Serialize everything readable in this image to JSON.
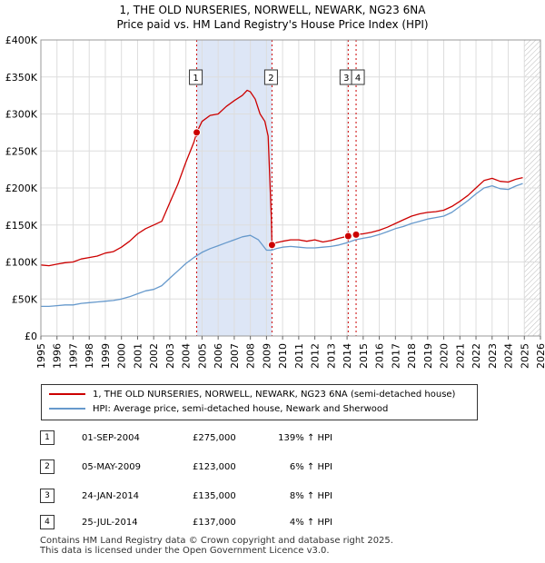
{
  "title": "1, THE OLD NURSERIES, NORWELL, NEWARK, NG23 6NA",
  "subtitle": "Price paid vs. HM Land Registry's House Price Index (HPI)",
  "colors": {
    "property": "#cc0000",
    "hpi": "#6699cc",
    "shade": "#dde6f6",
    "grid": "#dddddd",
    "marker_line": "#cc0000"
  },
  "chart_data": {
    "type": "line",
    "title": "1, THE OLD NURSERIES, NORWELL, NEWARK, NG23 6NA",
    "subtitle": "Price paid vs. HM Land Registry's House Price Index (HPI)",
    "xlim": [
      1995,
      2026
    ],
    "ylim": [
      0,
      400000
    ],
    "y_ticks": [
      {
        "value": 0,
        "label": "£0"
      },
      {
        "value": 50000,
        "label": "£50K"
      },
      {
        "value": 100000,
        "label": "£100K"
      },
      {
        "value": 150000,
        "label": "£150K"
      },
      {
        "value": 200000,
        "label": "£200K"
      },
      {
        "value": 250000,
        "label": "£250K"
      },
      {
        "value": 300000,
        "label": "£300K"
      },
      {
        "value": 350000,
        "label": "£350K"
      },
      {
        "value": 400000,
        "label": "£400K"
      }
    ],
    "x_ticks": [
      "1995",
      "1996",
      "1997",
      "1998",
      "1999",
      "2000",
      "2001",
      "2002",
      "2003",
      "2004",
      "2005",
      "2006",
      "2007",
      "2008",
      "2009",
      "2010",
      "2011",
      "2012",
      "2013",
      "2014",
      "2015",
      "2016",
      "2017",
      "2018",
      "2019",
      "2020",
      "2021",
      "2022",
      "2023",
      "2024",
      "2025",
      "2026"
    ],
    "grid": true,
    "shaded_period": {
      "from": 2004.67,
      "to": 2009.34
    },
    "hatched_after": 2025.0,
    "series": [
      {
        "name": "1, THE OLD NURSERIES, NORWELL, NEWARK, NG23 6NA (semi-detached house)",
        "color": "#cc0000",
        "points": [
          [
            1995.0,
            96000
          ],
          [
            1995.5,
            95000
          ],
          [
            1996.0,
            97000
          ],
          [
            1996.5,
            99000
          ],
          [
            1997.0,
            100000
          ],
          [
            1997.5,
            104000
          ],
          [
            1998.0,
            106000
          ],
          [
            1998.5,
            108000
          ],
          [
            1999.0,
            112000
          ],
          [
            1999.5,
            114000
          ],
          [
            2000.0,
            120000
          ],
          [
            2000.5,
            128000
          ],
          [
            2001.0,
            138000
          ],
          [
            2001.5,
            145000
          ],
          [
            2002.0,
            150000
          ],
          [
            2002.5,
            155000
          ],
          [
            2003.0,
            180000
          ],
          [
            2003.5,
            205000
          ],
          [
            2004.0,
            235000
          ],
          [
            2004.5,
            262000
          ],
          [
            2004.67,
            275000
          ],
          [
            2005.0,
            290000
          ],
          [
            2005.5,
            298000
          ],
          [
            2006.0,
            300000
          ],
          [
            2006.5,
            310000
          ],
          [
            2007.0,
            318000
          ],
          [
            2007.5,
            325000
          ],
          [
            2007.8,
            332000
          ],
          [
            2008.0,
            330000
          ],
          [
            2008.3,
            320000
          ],
          [
            2008.6,
            300000
          ],
          [
            2008.9,
            290000
          ],
          [
            2009.1,
            270000
          ],
          [
            2009.3,
            160000
          ],
          [
            2009.34,
            123000
          ],
          [
            2009.6,
            126000
          ],
          [
            2010.0,
            128000
          ],
          [
            2010.5,
            130000
          ],
          [
            2011.0,
            130000
          ],
          [
            2011.5,
            128000
          ],
          [
            2012.0,
            130000
          ],
          [
            2012.5,
            127000
          ],
          [
            2013.0,
            129000
          ],
          [
            2013.5,
            132000
          ],
          [
            2014.07,
            135000
          ],
          [
            2014.56,
            137000
          ],
          [
            2015.0,
            138000
          ],
          [
            2015.5,
            140000
          ],
          [
            2016.0,
            143000
          ],
          [
            2016.5,
            147000
          ],
          [
            2017.0,
            152000
          ],
          [
            2017.5,
            157000
          ],
          [
            2018.0,
            162000
          ],
          [
            2018.5,
            165000
          ],
          [
            2019.0,
            167000
          ],
          [
            2019.5,
            168000
          ],
          [
            2020.0,
            170000
          ],
          [
            2020.5,
            175000
          ],
          [
            2021.0,
            182000
          ],
          [
            2021.5,
            190000
          ],
          [
            2022.0,
            200000
          ],
          [
            2022.5,
            210000
          ],
          [
            2023.0,
            213000
          ],
          [
            2023.5,
            209000
          ],
          [
            2024.0,
            208000
          ],
          [
            2024.5,
            212000
          ],
          [
            2024.9,
            214000
          ]
        ]
      },
      {
        "name": "HPI: Average price, semi-detached house, Newark and Sherwood",
        "color": "#6699cc",
        "points": [
          [
            1995.0,
            40000
          ],
          [
            1995.5,
            40000
          ],
          [
            1996.0,
            41000
          ],
          [
            1996.5,
            42000
          ],
          [
            1997.0,
            42000
          ],
          [
            1997.5,
            44000
          ],
          [
            1998.0,
            45000
          ],
          [
            1998.5,
            46000
          ],
          [
            1999.0,
            47000
          ],
          [
            1999.5,
            48000
          ],
          [
            2000.0,
            50000
          ],
          [
            2000.5,
            53000
          ],
          [
            2001.0,
            57000
          ],
          [
            2001.5,
            61000
          ],
          [
            2002.0,
            63000
          ],
          [
            2002.5,
            68000
          ],
          [
            2003.0,
            78000
          ],
          [
            2003.5,
            88000
          ],
          [
            2004.0,
            98000
          ],
          [
            2004.5,
            106000
          ],
          [
            2005.0,
            113000
          ],
          [
            2005.5,
            118000
          ],
          [
            2006.0,
            122000
          ],
          [
            2006.5,
            126000
          ],
          [
            2007.0,
            130000
          ],
          [
            2007.5,
            134000
          ],
          [
            2008.0,
            136000
          ],
          [
            2008.5,
            130000
          ],
          [
            2009.0,
            116000
          ],
          [
            2009.34,
            116000
          ],
          [
            2009.6,
            118000
          ],
          [
            2010.0,
            120000
          ],
          [
            2010.5,
            121000
          ],
          [
            2011.0,
            120000
          ],
          [
            2011.5,
            119000
          ],
          [
            2012.0,
            119000
          ],
          [
            2012.5,
            120000
          ],
          [
            2013.0,
            121000
          ],
          [
            2013.5,
            123000
          ],
          [
            2014.0,
            126000
          ],
          [
            2014.5,
            130000
          ],
          [
            2015.0,
            132000
          ],
          [
            2015.5,
            134000
          ],
          [
            2016.0,
            137000
          ],
          [
            2016.5,
            141000
          ],
          [
            2017.0,
            145000
          ],
          [
            2017.5,
            148000
          ],
          [
            2018.0,
            152000
          ],
          [
            2018.5,
            155000
          ],
          [
            2019.0,
            158000
          ],
          [
            2019.5,
            160000
          ],
          [
            2020.0,
            162000
          ],
          [
            2020.5,
            167000
          ],
          [
            2021.0,
            175000
          ],
          [
            2021.5,
            183000
          ],
          [
            2022.0,
            192000
          ],
          [
            2022.5,
            200000
          ],
          [
            2023.0,
            203000
          ],
          [
            2023.5,
            199000
          ],
          [
            2024.0,
            198000
          ],
          [
            2024.5,
            203000
          ],
          [
            2024.9,
            206000
          ]
        ]
      }
    ],
    "markers": [
      {
        "label": "1",
        "x": 2004.67,
        "y": 275000
      },
      {
        "label": "2",
        "x": 2009.34,
        "y": 123000
      },
      {
        "label": "3",
        "x": 2014.07,
        "y": 135000
      },
      {
        "label": "4",
        "x": 2014.56,
        "y": 137000
      }
    ]
  },
  "legend": {
    "property_label": "1, THE OLD NURSERIES, NORWELL, NEWARK, NG23 6NA (semi-detached house)",
    "hpi_label": "HPI: Average price, semi-detached house, Newark and Sherwood"
  },
  "transactions": [
    {
      "num": "1",
      "date": "01-SEP-2004",
      "price": "£275,000",
      "hpi": "139% ↑ HPI"
    },
    {
      "num": "2",
      "date": "05-MAY-2009",
      "price": "£123,000",
      "hpi": "6% ↑ HPI"
    },
    {
      "num": "3",
      "date": "24-JAN-2014",
      "price": "£135,000",
      "hpi": "8% ↑ HPI"
    },
    {
      "num": "4",
      "date": "25-JUL-2014",
      "price": "£137,000",
      "hpi": "4% ↑ HPI"
    }
  ],
  "footer": {
    "line1": "Contains HM Land Registry data © Crown copyright and database right 2025.",
    "line2": "This data is licensed under the Open Government Licence v3.0."
  }
}
